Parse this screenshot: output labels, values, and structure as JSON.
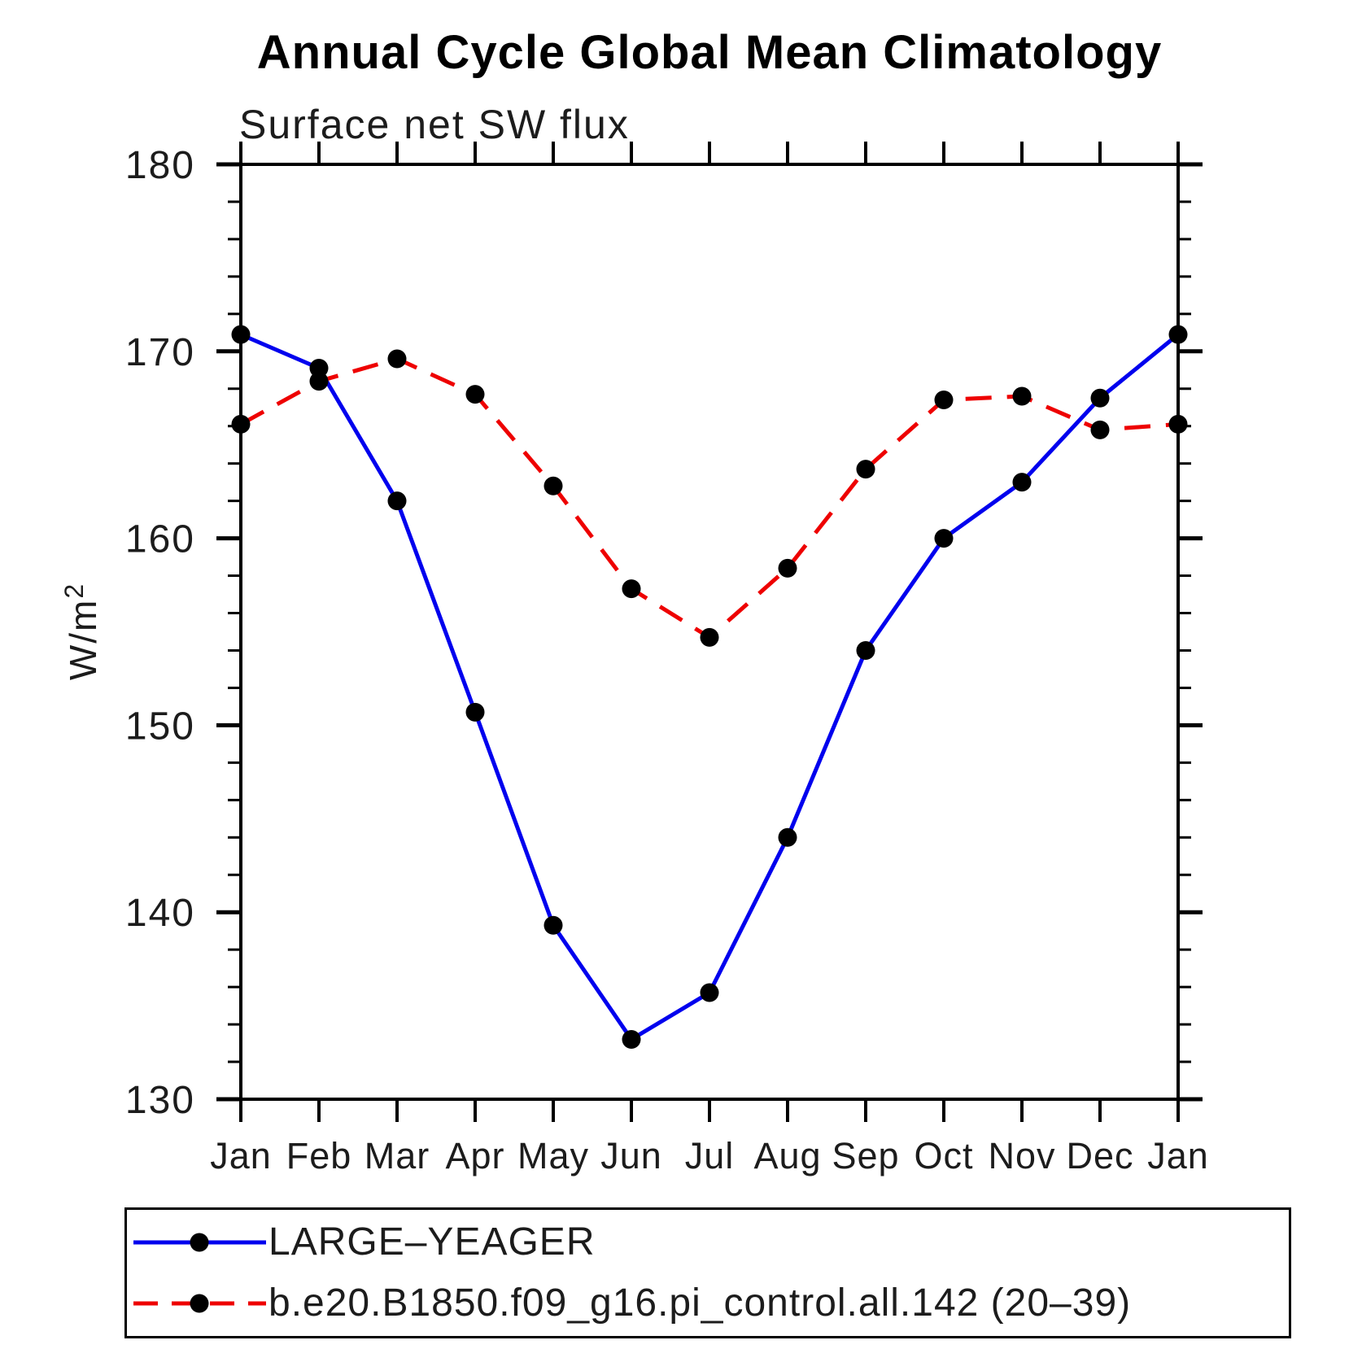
{
  "title": "Annual Cycle Global Mean Climatology",
  "subtitle": "Surface net SW flux",
  "y_axis": {
    "label_base": "W/m",
    "label_exponent": "2",
    "tick_labels": [
      "130",
      "140",
      "150",
      "160",
      "170",
      "180"
    ]
  },
  "chart_data": {
    "type": "line",
    "title": "Annual Cycle Global Mean Climatology",
    "subtitle": "Surface net SW flux",
    "ylabel": "W/m2",
    "categories": [
      "Jan",
      "Feb",
      "Mar",
      "Apr",
      "May",
      "Jun",
      "Jul",
      "Aug",
      "Sep",
      "Oct",
      "Nov",
      "Dec",
      "Jan"
    ],
    "ylim": [
      130,
      180
    ],
    "ytick_major": 10,
    "ytick_minor": 2,
    "grid": false,
    "legend_position": "bottom",
    "series": [
      {
        "name": "LARGE–YEAGER",
        "color": "#0000ee",
        "line_style": "solid",
        "marker": "filled-circle",
        "marker_color": "#000000",
        "values": [
          170.9,
          169.1,
          162.0,
          150.7,
          139.3,
          133.2,
          135.7,
          144.0,
          154.0,
          160.0,
          163.0,
          167.5,
          170.9
        ]
      },
      {
        "name": "b.e20.B1850.f09_g16.pi_control.all.142 (20–39)",
        "color": "#ee0000",
        "line_style": "dashed",
        "marker": "filled-circle",
        "marker_color": "#000000",
        "values": [
          166.1,
          168.4,
          169.6,
          167.7,
          162.8,
          157.3,
          154.7,
          158.4,
          163.7,
          167.4,
          167.6,
          165.8,
          166.1
        ]
      }
    ]
  },
  "legend": {
    "entries": [
      {
        "label": "LARGE–YEAGER",
        "line_color": "#0000ee",
        "line_style": "solid",
        "marker": "filled-circle"
      },
      {
        "label": "b.e20.B1850.f09_g16.pi_control.all.142 (20–39)",
        "line_color": "#ee0000",
        "line_style": "dashed",
        "marker": "filled-circle"
      }
    ]
  }
}
